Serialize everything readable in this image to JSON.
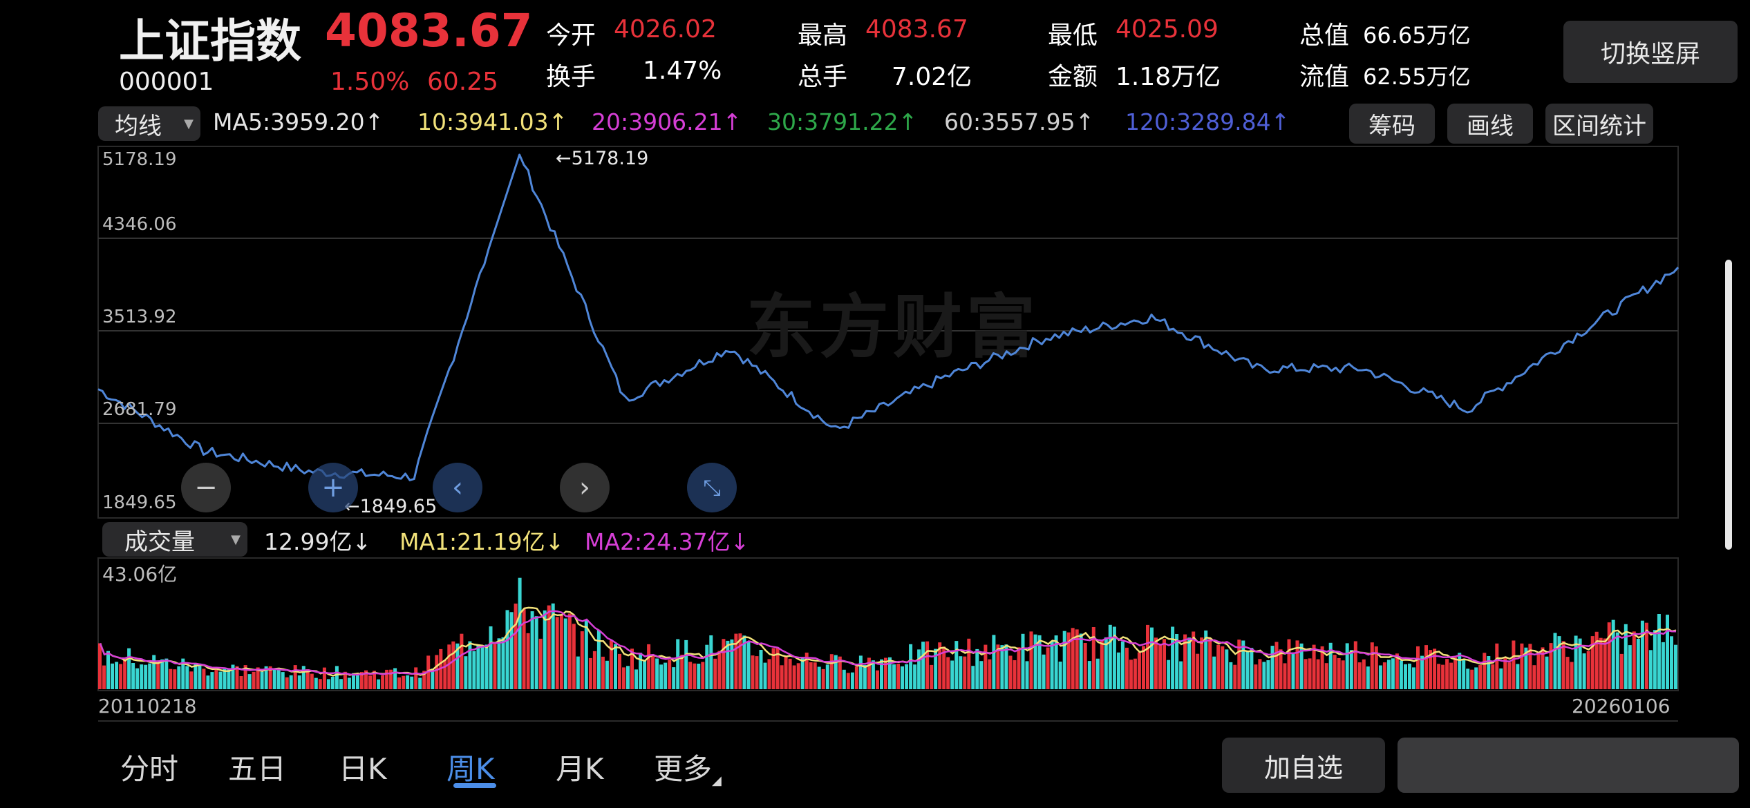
{
  "header": {
    "name": "上证指数",
    "price": "4083.67",
    "code": "000001",
    "change_pct": "1.50%",
    "change_abs": "60.25",
    "stats": [
      {
        "label": "今开",
        "value": "4026.02"
      },
      {
        "label": "最高",
        "value": "4083.67"
      },
      {
        "label": "最低",
        "value": "4025.09"
      },
      {
        "label": "总值",
        "value": "66.65万亿"
      },
      {
        "label": "换手",
        "value": "1.47%"
      },
      {
        "label": "总手",
        "value": "7.02亿"
      },
      {
        "label": "金额",
        "value": "1.18万亿"
      },
      {
        "label": "流值",
        "value": "62.55万亿"
      }
    ],
    "switch_label": "切换竖屏"
  },
  "ma_bar": {
    "selector": "均线",
    "items": [
      {
        "text": "MA5:3959.20↑",
        "color": "#e6e6e6"
      },
      {
        "text": "10:3941.03↑",
        "color": "#f2e27a"
      },
      {
        "text": "20:3906.21↑",
        "color": "#d63fd6"
      },
      {
        "text": "30:3791.22↑",
        "color": "#2ea84a"
      },
      {
        "text": "60:3557.95↑",
        "color": "#cfcfcf"
      },
      {
        "text": "120:3289.84↑",
        "color": "#4f5fd6"
      }
    ],
    "buttons": [
      "筹码",
      "画线",
      "区间统计"
    ]
  },
  "price_axis": [
    "5178.19",
    "4346.06",
    "3513.92",
    "2681.79",
    "1849.65"
  ],
  "annotations": {
    "high": "←5178.19",
    "low": "←1849.65"
  },
  "watermark": "东方财富",
  "volume_bar": {
    "selector": "成交量",
    "items": [
      {
        "text": "12.99亿↓",
        "color": "#e6e6e6"
      },
      {
        "text": "MA1:21.19亿↓",
        "color": "#f2e27a"
      },
      {
        "text": "MA2:24.37亿↓",
        "color": "#d63fd6"
      }
    ],
    "axis_top": "43.06亿"
  },
  "dates": {
    "start": "20110218",
    "end": "20260106"
  },
  "bottom_tabs": [
    "分时",
    "五日",
    "日K",
    "周K",
    "月K",
    "更多"
  ],
  "active_tab": "周K",
  "add_button": "加自选",
  "colors": {
    "up": "#e8323a",
    "down": "#39d6d2",
    "line": "#4f86d8",
    "accent": "#4c8ee8"
  },
  "chart_data": {
    "type": "line",
    "ylim": [
      1849.65,
      5178.19
    ],
    "x": [
      "2011",
      "2012",
      "2013",
      "2014",
      "2015-06",
      "2016",
      "2017",
      "2018",
      "2019",
      "2020",
      "2021",
      "2022",
      "2023",
      "2024",
      "2025",
      "2026-01"
    ],
    "values": [
      2900,
      2300,
      2100,
      2050,
      5178.19,
      2800,
      3300,
      2500,
      3000,
      3400,
      3600,
      3100,
      3100,
      2700,
      3400,
      4083.67
    ]
  }
}
